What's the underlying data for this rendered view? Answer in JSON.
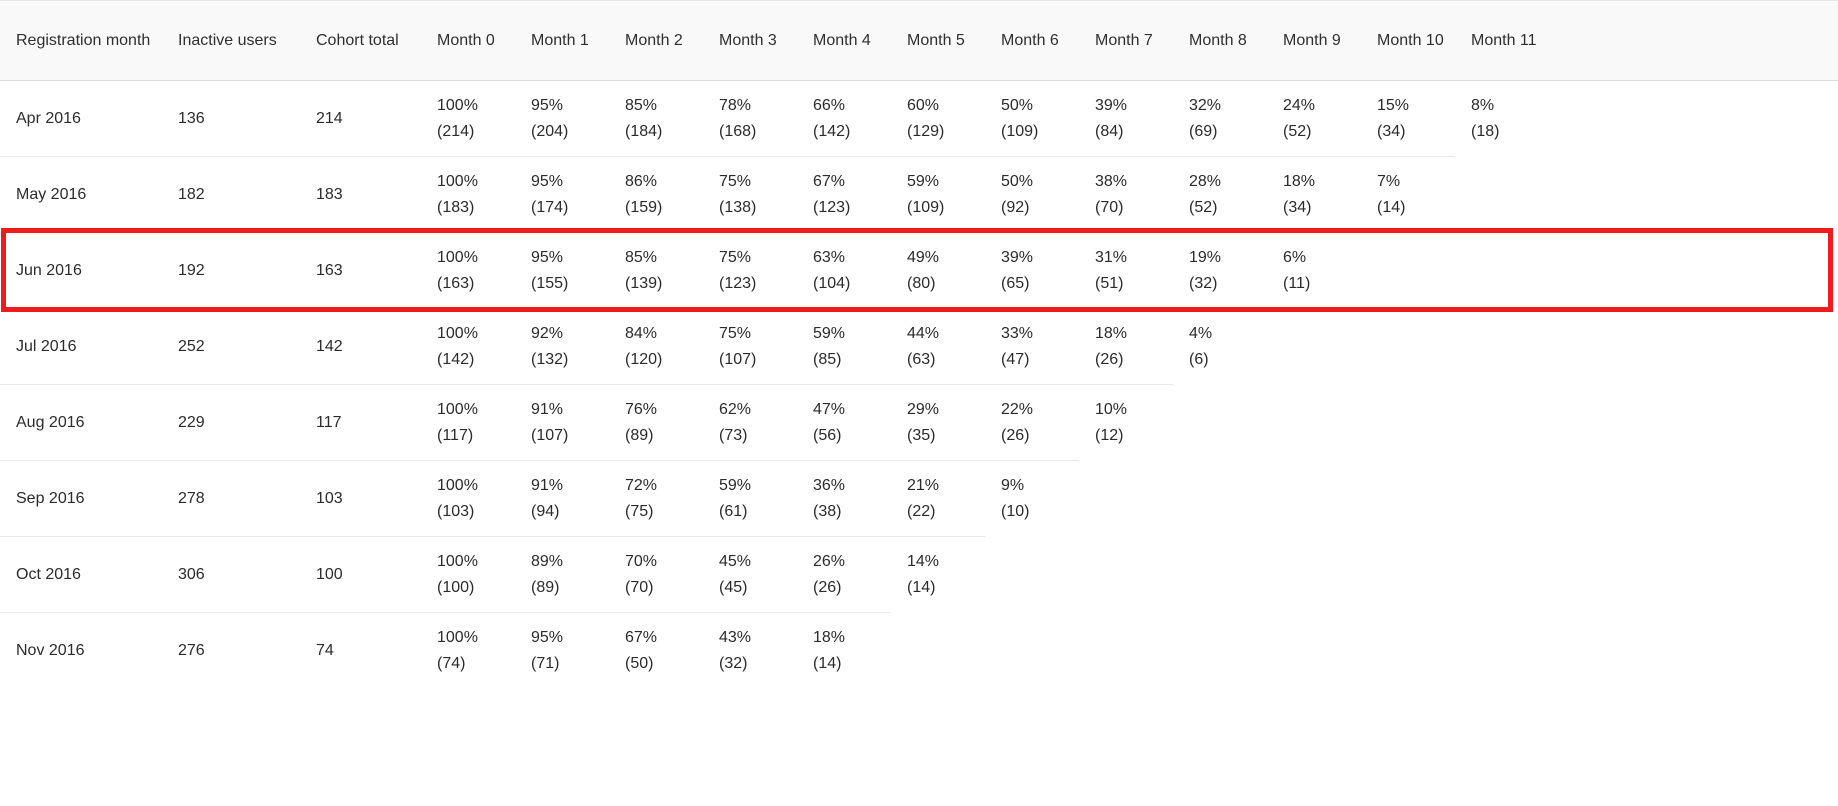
{
  "page": {
    "background": "#ffffff",
    "text_color": "#2b2b2b",
    "header_background": "#f9f9f9",
    "row_border_color": "#e8e8e8"
  },
  "chart_data": {
    "type": "table",
    "description": "Monthly cohort retention table, staircase layout, one row highlighted with a red annotation box",
    "columns": [
      "Registration month",
      "Inactive users",
      "Cohort total",
      "Month 0",
      "Month 1",
      "Month 2",
      "Month 3",
      "Month 4",
      "Month 5",
      "Month 6",
      "Month 7",
      "Month 8",
      "Month 9",
      "Month 10",
      "Month 11"
    ],
    "rows": [
      {
        "registration_month": "Apr 2016",
        "inactive_users": "136",
        "cohort_total": "214",
        "retention": [
          {
            "pct": "100%",
            "count": "(214)"
          },
          {
            "pct": "95%",
            "count": "(204)"
          },
          {
            "pct": "85%",
            "count": "(184)"
          },
          {
            "pct": "78%",
            "count": "(168)"
          },
          {
            "pct": "66%",
            "count": "(142)"
          },
          {
            "pct": "60%",
            "count": "(129)"
          },
          {
            "pct": "50%",
            "count": "(109)"
          },
          {
            "pct": "39%",
            "count": "(84)"
          },
          {
            "pct": "32%",
            "count": "(69)"
          },
          {
            "pct": "24%",
            "count": "(52)"
          },
          {
            "pct": "15%",
            "count": "(34)"
          },
          {
            "pct": "8%",
            "count": "(18)"
          }
        ]
      },
      {
        "registration_month": "May 2016",
        "inactive_users": "182",
        "cohort_total": "183",
        "retention": [
          {
            "pct": "100%",
            "count": "(183)"
          },
          {
            "pct": "95%",
            "count": "(174)"
          },
          {
            "pct": "86%",
            "count": "(159)"
          },
          {
            "pct": "75%",
            "count": "(138)"
          },
          {
            "pct": "67%",
            "count": "(123)"
          },
          {
            "pct": "59%",
            "count": "(109)"
          },
          {
            "pct": "50%",
            "count": "(92)"
          },
          {
            "pct": "38%",
            "count": "(70)"
          },
          {
            "pct": "28%",
            "count": "(52)"
          },
          {
            "pct": "18%",
            "count": "(34)"
          },
          {
            "pct": "7%",
            "count": "(14)"
          }
        ]
      },
      {
        "registration_month": "Jun 2016",
        "inactive_users": "192",
        "cohort_total": "163",
        "retention": [
          {
            "pct": "100%",
            "count": "(163)"
          },
          {
            "pct": "95%",
            "count": "(155)"
          },
          {
            "pct": "85%",
            "count": "(139)"
          },
          {
            "pct": "75%",
            "count": "(123)"
          },
          {
            "pct": "63%",
            "count": "(104)"
          },
          {
            "pct": "49%",
            "count": "(80)"
          },
          {
            "pct": "39%",
            "count": "(65)"
          },
          {
            "pct": "31%",
            "count": "(51)"
          },
          {
            "pct": "19%",
            "count": "(32)"
          },
          {
            "pct": "6%",
            "count": "(11)"
          }
        ]
      },
      {
        "registration_month": "Jul 2016",
        "inactive_users": "252",
        "cohort_total": "142",
        "retention": [
          {
            "pct": "100%",
            "count": "(142)"
          },
          {
            "pct": "92%",
            "count": "(132)"
          },
          {
            "pct": "84%",
            "count": "(120)"
          },
          {
            "pct": "75%",
            "count": "(107)"
          },
          {
            "pct": "59%",
            "count": "(85)"
          },
          {
            "pct": "44%",
            "count": "(63)"
          },
          {
            "pct": "33%",
            "count": "(47)"
          },
          {
            "pct": "18%",
            "count": "(26)"
          },
          {
            "pct": "4%",
            "count": "(6)"
          }
        ]
      },
      {
        "registration_month": "Aug 2016",
        "inactive_users": "229",
        "cohort_total": "117",
        "retention": [
          {
            "pct": "100%",
            "count": "(117)"
          },
          {
            "pct": "91%",
            "count": "(107)"
          },
          {
            "pct": "76%",
            "count": "(89)"
          },
          {
            "pct": "62%",
            "count": "(73)"
          },
          {
            "pct": "47%",
            "count": "(56)"
          },
          {
            "pct": "29%",
            "count": "(35)"
          },
          {
            "pct": "22%",
            "count": "(26)"
          },
          {
            "pct": "10%",
            "count": "(12)"
          }
        ]
      },
      {
        "registration_month": "Sep 2016",
        "inactive_users": "278",
        "cohort_total": "103",
        "retention": [
          {
            "pct": "100%",
            "count": "(103)"
          },
          {
            "pct": "91%",
            "count": "(94)"
          },
          {
            "pct": "72%",
            "count": "(75)"
          },
          {
            "pct": "59%",
            "count": "(61)"
          },
          {
            "pct": "36%",
            "count": "(38)"
          },
          {
            "pct": "21%",
            "count": "(22)"
          },
          {
            "pct": "9%",
            "count": "(10)"
          }
        ]
      },
      {
        "registration_month": "Oct 2016",
        "inactive_users": "306",
        "cohort_total": "100",
        "retention": [
          {
            "pct": "100%",
            "count": "(100)"
          },
          {
            "pct": "89%",
            "count": "(89)"
          },
          {
            "pct": "70%",
            "count": "(70)"
          },
          {
            "pct": "45%",
            "count": "(45)"
          },
          {
            "pct": "26%",
            "count": "(26)"
          },
          {
            "pct": "14%",
            "count": "(14)"
          }
        ]
      },
      {
        "registration_month": "Nov 2016",
        "inactive_users": "276",
        "cohort_total": "74",
        "retention": [
          {
            "pct": "100%",
            "count": "(74)"
          },
          {
            "pct": "95%",
            "count": "(71)"
          },
          {
            "pct": "67%",
            "count": "(50)"
          },
          {
            "pct": "43%",
            "count": "(32)"
          },
          {
            "pct": "18%",
            "count": "(14)"
          }
        ]
      }
    ],
    "annotation": {
      "kind": "highlight-box",
      "highlighted_row": "Jun 2016",
      "color": "#ee1c1c"
    }
  }
}
